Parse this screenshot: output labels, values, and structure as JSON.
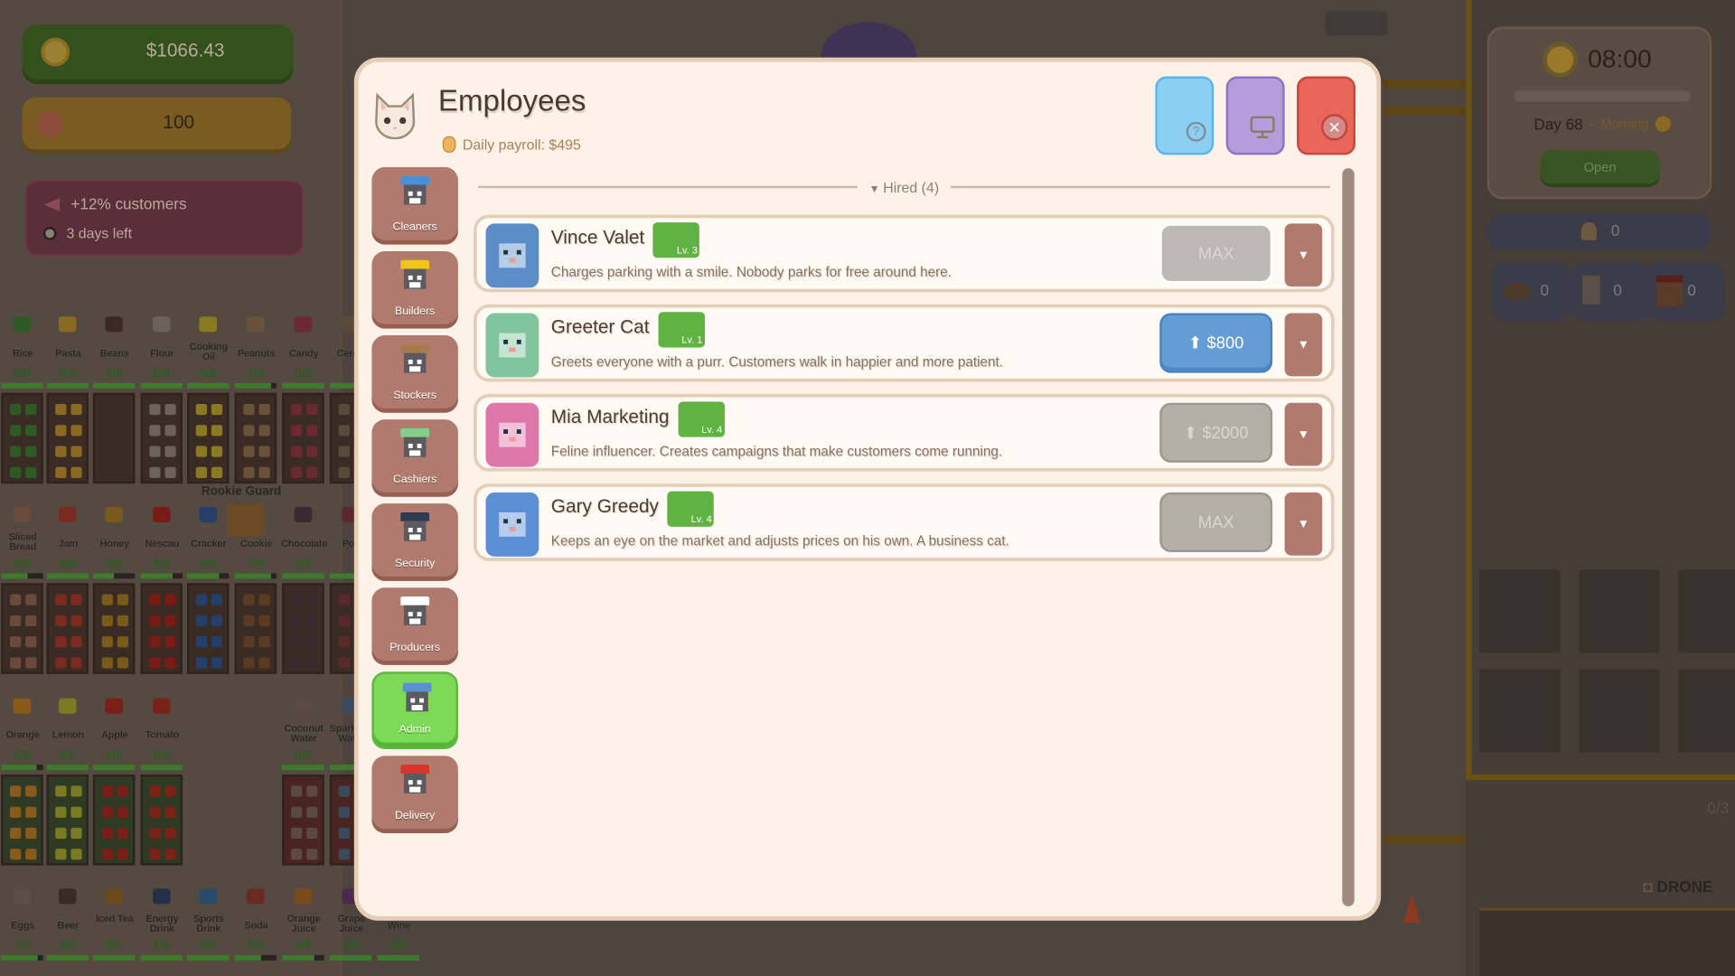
{
  "hud": {
    "money": "$1066.43",
    "paws": "100",
    "boost": {
      "effect": "+12% customers",
      "remaining": "3 days left"
    },
    "time": "08:00",
    "day": "Day 68",
    "period": "Morning",
    "open_label": "Open",
    "bell_count": "0",
    "counters": [
      "0",
      "0",
      "0"
    ]
  },
  "background_labels": {
    "guard": "Rookie Guard",
    "drone": "DRONE",
    "capacity": "0/3"
  },
  "shelves": [
    [
      {
        "name": "Rice",
        "count": "8/8",
        "fill": 1
      },
      {
        "name": "Pasta",
        "count": "8/8",
        "fill": 1
      },
      {
        "name": "Beans",
        "count": "8/8",
        "fill": 1
      },
      {
        "name": "Flour",
        "count": "8/8",
        "fill": 1
      },
      {
        "name": "Cooking Oil",
        "count": "8/8",
        "fill": 1
      },
      {
        "name": "Peanuts",
        "count": "7/8",
        "fill": 0.875
      },
      {
        "name": "Candy",
        "count": "8/8",
        "fill": 1
      },
      {
        "name": "Cereal",
        "count": "",
        "fill": 1
      }
    ],
    [
      {
        "name": "Sliced Bread",
        "count": "5/8",
        "fill": 0.625
      },
      {
        "name": "Jam",
        "count": "8/8",
        "fill": 1
      },
      {
        "name": "Honey",
        "count": "4/8",
        "fill": 0.5
      },
      {
        "name": "Nescau",
        "count": "6/8",
        "fill": 0.75
      },
      {
        "name": "Cracker",
        "count": "6/8",
        "fill": 0.75
      },
      {
        "name": "Cookie",
        "count": "7/8",
        "fill": 0.875
      },
      {
        "name": "Chocolate",
        "count": "8/8",
        "fill": 1
      },
      {
        "name": "Pop",
        "count": "",
        "fill": 0.75
      }
    ],
    [
      {
        "name": "Orange",
        "count": "5/6",
        "fill": 0.83
      },
      {
        "name": "Lemon",
        "count": "6/6",
        "fill": 1
      },
      {
        "name": "Apple",
        "count": "6/6",
        "fill": 1
      },
      {
        "name": "Tomato",
        "count": "6/6",
        "fill": 1
      },
      null,
      null,
      {
        "name": "Coconut Water",
        "count": "8/8",
        "fill": 1
      },
      {
        "name": "Sparkling Water",
        "count": "",
        "fill": 1
      }
    ],
    [
      {
        "name": "Eggs",
        "count": "7/8",
        "fill": 0.875
      },
      {
        "name": "Beer",
        "count": "8/8",
        "fill": 1
      },
      {
        "name": "Iced Tea",
        "count": "8/8",
        "fill": 1
      },
      {
        "name": "Energy Drink",
        "count": "8/8",
        "fill": 1
      },
      {
        "name": "Sports Drink",
        "count": "8/8",
        "fill": 1
      },
      {
        "name": "Soda",
        "count": "5/8",
        "fill": 0.625
      },
      {
        "name": "Orange Juice",
        "count": "6/8",
        "fill": 0.75
      },
      {
        "name": "Grape Juice",
        "count": "8/8",
        "fill": 1
      },
      {
        "name": "Wine",
        "count": "8/8",
        "fill": 1
      }
    ]
  ],
  "modal": {
    "title": "Employees",
    "payroll": "Daily payroll: $495",
    "buttons": {
      "help": "help-icon",
      "display": "monitor-icon",
      "close": "close-icon"
    },
    "tabs": [
      {
        "label": "Cleaners",
        "color": "#4a90d9",
        "active": false
      },
      {
        "label": "Builders",
        "color": "#f0c419",
        "active": false
      },
      {
        "label": "Stockers",
        "color": "#a87b4f",
        "active": false
      },
      {
        "label": "Cashiers",
        "color": "#7fd18b",
        "active": false
      },
      {
        "label": "Security",
        "color": "#2e3a4f",
        "active": false
      },
      {
        "label": "Producers",
        "color": "#ffffff",
        "active": false
      },
      {
        "label": "Admin",
        "color": "#5b8fd6",
        "active": true
      },
      {
        "label": "Delivery",
        "color": "#d9342b",
        "active": false
      }
    ],
    "section": "Hired (4)",
    "employees": [
      {
        "name": "Vince Valet",
        "level": "Lv. 3",
        "description": "Charges parking with a smile. Nobody parks for free around here.",
        "action": "MAX",
        "action_state": "max",
        "avatar_color": "#5b8ec9"
      },
      {
        "name": "Greeter Cat",
        "level": "Lv. 1",
        "description": "Greets everyone with a purr. Customers walk in happier and more patient.",
        "action": "⬆ $800",
        "action_state": "affordable",
        "avatar_color": "#7fc49c"
      },
      {
        "name": "Mia Marketing",
        "level": "Lv. 4",
        "description": "Feline influencer. Creates campaigns that make customers come running.",
        "action": "⬆ $2000",
        "action_state": "locked",
        "avatar_color": "#dd77a8"
      },
      {
        "name": "Gary Greedy",
        "level": "Lv. 4",
        "description": "Keeps an eye on the market and adjusts prices on his own. A business cat.",
        "action": "MAX",
        "action_state": "max",
        "avatar_color": "#5b8fd6"
      }
    ]
  },
  "colors": {
    "accent_green": "#5fb341",
    "upgrade_blue": "#639dd4",
    "dropdown": "#b07b6e",
    "panel": "#fcf2e8"
  }
}
